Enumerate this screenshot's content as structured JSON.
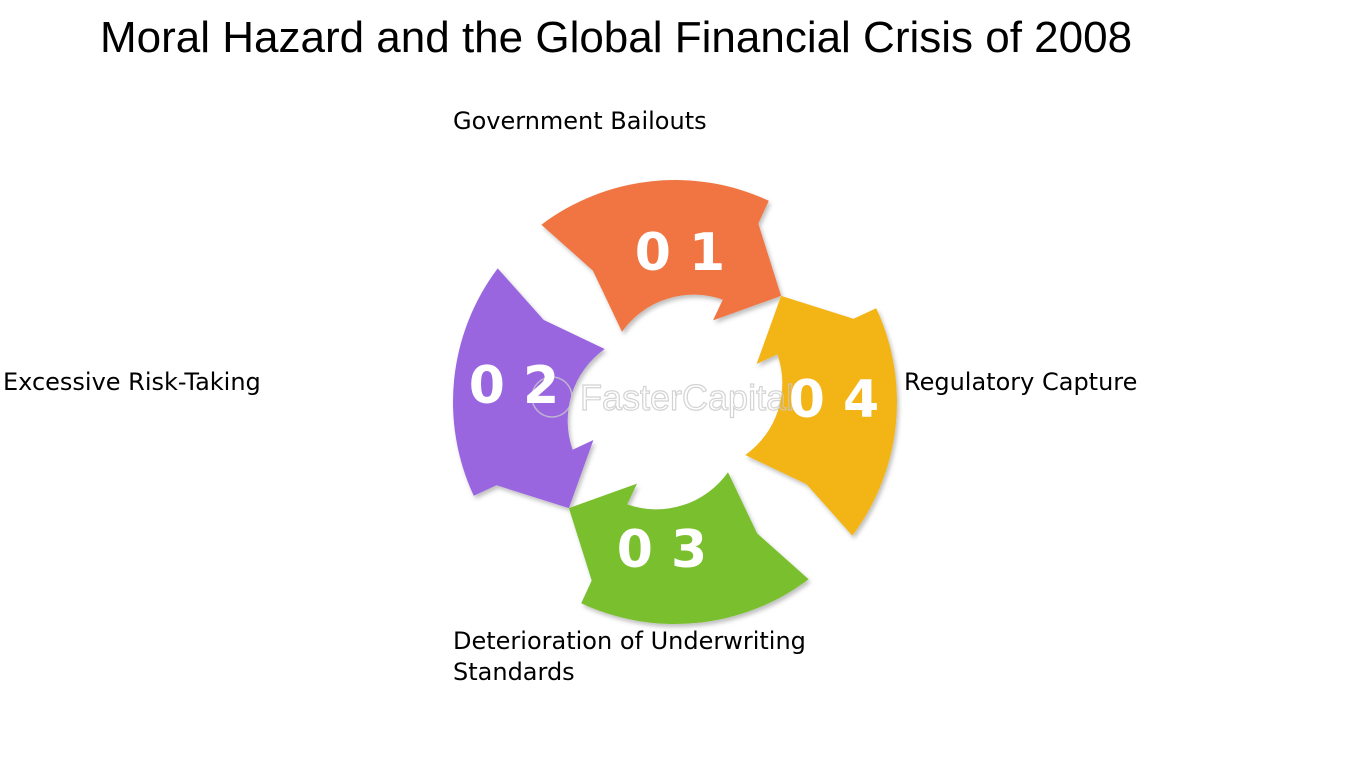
{
  "title": "Moral Hazard and the Global Financial Crisis of 2008",
  "watermark": "FasterCapital",
  "steps": [
    {
      "number": "0 1",
      "label": "Government Bailouts",
      "color": "#f07442"
    },
    {
      "number": "0 2",
      "label": "Excessive Risk-Taking",
      "color": "#9966e0"
    },
    {
      "number": "0 3",
      "label": "Deterioration of Underwriting Standards",
      "color": "#79bf2d"
    },
    {
      "number": "0 4",
      "label": "Regulatory Capture",
      "color": "#f3b416"
    }
  ]
}
